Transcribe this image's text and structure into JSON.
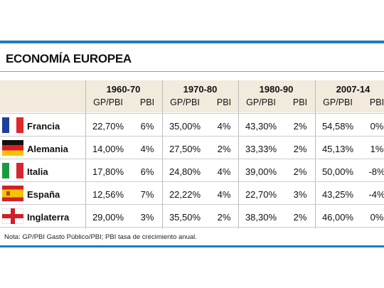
{
  "header": {
    "title": "ECONOMÍA EUROPEA"
  },
  "table": {
    "groups": [
      "1960-70",
      "1970-80",
      "1980-90",
      "2007-14"
    ],
    "subheaders": [
      "GP/PBI",
      "PBI",
      "GP/PBI",
      "PBI",
      "GP/PBI",
      "PBI",
      "GP/PBI",
      "PBI"
    ],
    "rows": [
      {
        "country": "Francia",
        "values": [
          "22,70%",
          "6%",
          "35,00%",
          "4%",
          "43,30%",
          "2%",
          "54,58%",
          "0%"
        ]
      },
      {
        "country": "Alemania",
        "values": [
          "14,00%",
          "4%",
          "27,50%",
          "2%",
          "33,33%",
          "2%",
          "45,13%",
          "1%"
        ]
      },
      {
        "country": "Italia",
        "values": [
          "17,80%",
          "6%",
          "24,80%",
          "4%",
          "39,00%",
          "2%",
          "50,00%",
          "-8%"
        ]
      },
      {
        "country": "España",
        "values": [
          "12,56%",
          "7%",
          "22,22%",
          "4%",
          "22,70%",
          "3%",
          "43,25%",
          "-4%"
        ]
      },
      {
        "country": "Inglaterra",
        "values": [
          "29,00%",
          "3%",
          "35,50%",
          "2%",
          "38,30%",
          "2%",
          "46,00%",
          "0%"
        ]
      }
    ]
  },
  "note": "Nota: GP/PBI Gasto Público/PBI; PBI tasa de crecimiento anual."
}
